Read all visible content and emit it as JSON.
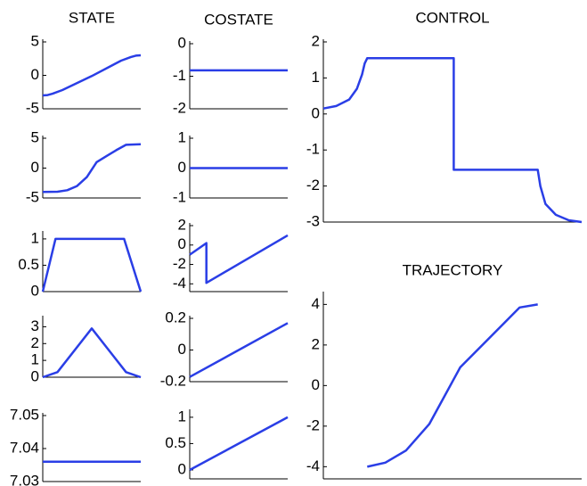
{
  "chart_data": [
    {
      "type": "line",
      "title": "STATE",
      "color": "#2a3ee6",
      "x": [
        0,
        0.05,
        0.1,
        0.2,
        0.5,
        0.8,
        0.9,
        0.95,
        1
      ],
      "values": [
        -3,
        -2.95,
        -2.75,
        -2.2,
        -0.1,
        2.2,
        2.75,
        2.95,
        3
      ],
      "xlim": [
        0,
        1
      ],
      "ylim": [
        -5,
        5
      ],
      "yticks": [
        -5,
        0,
        5
      ]
    },
    {
      "type": "line",
      "color": "#2a3ee6",
      "x": [
        0,
        0.15,
        0.25,
        0.35,
        0.45,
        0.55,
        0.65,
        0.75,
        0.85,
        1
      ],
      "values": [
        -4,
        -3.95,
        -3.7,
        -3,
        -1.5,
        1,
        2,
        3,
        3.9,
        4
      ],
      "xlim": [
        0,
        1
      ],
      "ylim": [
        -5,
        5
      ],
      "yticks": [
        -5,
        0,
        5
      ]
    },
    {
      "type": "line",
      "color": "#2a3ee6",
      "x": [
        0,
        0.13,
        0.83,
        1
      ],
      "values": [
        0,
        1,
        1,
        0
      ],
      "xlim": [
        0,
        1
      ],
      "ylim": [
        0,
        1.1
      ],
      "yticks": [
        0,
        0.5,
        1
      ]
    },
    {
      "type": "line",
      "color": "#2a3ee6",
      "x": [
        0,
        0.15,
        0.5,
        0.85,
        1
      ],
      "values": [
        0,
        0.3,
        2.9,
        0.3,
        0
      ],
      "xlim": [
        0,
        1
      ],
      "ylim": [
        0,
        3.5
      ],
      "yticks": [
        0,
        1,
        2,
        3
      ]
    },
    {
      "type": "line",
      "color": "#2a3ee6",
      "x": [
        0,
        1
      ],
      "values": [
        7.036,
        7.036
      ],
      "xlim": [
        0,
        1
      ],
      "ylim": [
        7.03,
        7.05
      ],
      "yticks": [
        7.03,
        7.04,
        7.05
      ]
    },
    {
      "type": "line",
      "title": "COSTATE",
      "color": "#2a3ee6",
      "x": [
        0,
        1
      ],
      "values": [
        -0.82,
        -0.82
      ],
      "xlim": [
        0,
        1
      ],
      "ylim": [
        -2,
        0
      ],
      "yticks": [
        -2,
        -1,
        0
      ]
    },
    {
      "type": "line",
      "color": "#2a3ee6",
      "x": [
        0,
        1
      ],
      "values": [
        0,
        0
      ],
      "xlim": [
        0,
        1
      ],
      "ylim": [
        -1,
        1
      ],
      "yticks": [
        -1,
        0,
        1
      ]
    },
    {
      "type": "line",
      "color": "#2a3ee6",
      "x": [
        0,
        0.17,
        0.17,
        1
      ],
      "values": [
        -1,
        0.2,
        -3.9,
        1
      ],
      "xlim": [
        0,
        1
      ],
      "ylim": [
        -4.8,
        2
      ],
      "yticks": [
        -4,
        -2,
        0,
        2
      ]
    },
    {
      "type": "line",
      "color": "#2a3ee6",
      "x": [
        0,
        1
      ],
      "values": [
        -0.17,
        0.17
      ],
      "xlim": [
        0,
        1
      ],
      "ylim": [
        -0.2,
        0.2
      ],
      "yticks": [
        -0.2,
        0,
        0.2
      ]
    },
    {
      "type": "line",
      "color": "#2a3ee6",
      "x": [
        0,
        1
      ],
      "values": [
        0,
        1
      ],
      "xlim": [
        0,
        1
      ],
      "ylim": [
        -0.17,
        1.1
      ],
      "yticks": [
        0,
        0.5,
        1
      ]
    },
    {
      "type": "line",
      "title": "CONTROL",
      "color": "#2a3ee6",
      "x": [
        0,
        0.05,
        0.1,
        0.13,
        0.15,
        0.16,
        0.17,
        0.505,
        0.505,
        0.83,
        0.84,
        0.86,
        0.9,
        0.95,
        1
      ],
      "values": [
        0.15,
        0.22,
        0.4,
        0.7,
        1.1,
        1.4,
        1.55,
        1.55,
        -1.55,
        -1.55,
        -2.0,
        -2.5,
        -2.8,
        -2.95,
        -3
      ],
      "xlim": [
        0,
        1
      ],
      "ylim": [
        -3,
        2
      ],
      "yticks": [
        -3,
        -2,
        -1,
        0,
        1,
        2
      ]
    },
    {
      "type": "line",
      "title": "TRAJECTORY",
      "color": "#2a3ee6",
      "x": [
        0.17,
        0.24,
        0.32,
        0.41,
        0.53,
        0.76,
        0.83
      ],
      "values": [
        -4,
        -3.8,
        -3.2,
        -1.9,
        0.9,
        3.85,
        4
      ],
      "xlim": [
        0,
        1
      ],
      "ylim": [
        -4.6,
        4.5
      ],
      "yticks": [
        -4,
        -2,
        0,
        2,
        4
      ]
    }
  ]
}
